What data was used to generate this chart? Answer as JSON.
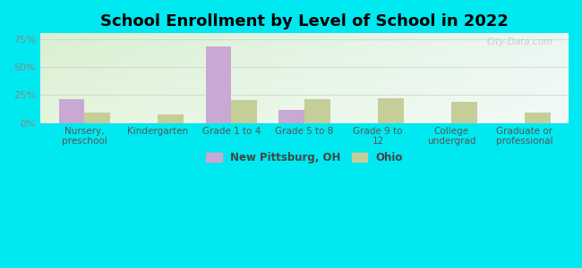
{
  "title": "School Enrollment by Level of School in 2022",
  "categories": [
    "Nursery,\npreschool",
    "Kindergarten",
    "Grade 1 to 4",
    "Grade 5 to 8",
    "Grade 9 to\n12",
    "College\nundergrad",
    "Graduate or\nprofessional"
  ],
  "new_pittsburg": [
    21,
    0,
    68,
    12,
    0,
    0,
    0
  ],
  "ohio": [
    9,
    8,
    20,
    21,
    22,
    19,
    9
  ],
  "color_np": "#c9a8d4",
  "color_ohio": "#c5ce98",
  "ylim": [
    0,
    80
  ],
  "yticks": [
    0,
    25,
    50,
    75
  ],
  "ytick_labels": [
    "0%",
    "25%",
    "50%",
    "75%"
  ],
  "legend_np": "New Pittsburg, OH",
  "legend_ohio": "Ohio",
  "bg_outer": "#00e8f0",
  "watermark": "City-Data.com",
  "bar_width": 0.35,
  "title_fontsize": 13,
  "tick_fontsize": 7.5,
  "ytick_fontsize": 8
}
